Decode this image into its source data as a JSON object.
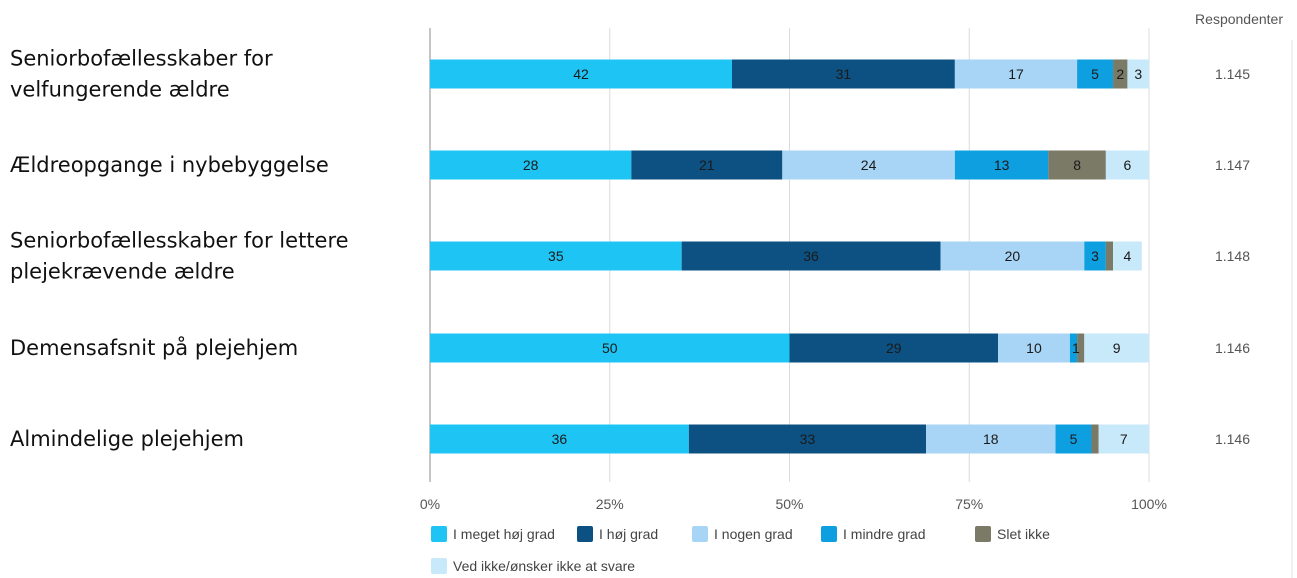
{
  "chart_data": {
    "type": "bar",
    "orientation": "horizontal",
    "stacked": true,
    "categories": [
      [
        "Seniorbofællesskaber for",
        "velfungerende ældre"
      ],
      [
        "Ældreopgange i nybebyggelse"
      ],
      [
        "Seniorbofællesskaber for lettere",
        "plejekrævende ældre"
      ],
      [
        "Demensafsnit på plejehjem"
      ],
      [
        "Almindelige plejehjem"
      ]
    ],
    "series": [
      {
        "name": "I meget høj grad",
        "color": "#1EC5F4",
        "values": [
          42,
          28,
          35,
          50,
          36
        ]
      },
      {
        "name": "I høj grad",
        "color": "#0D5183",
        "values": [
          31,
          21,
          36,
          29,
          33
        ]
      },
      {
        "name": "I nogen grad",
        "color": "#A8D5F5",
        "values": [
          17,
          24,
          20,
          10,
          18
        ]
      },
      {
        "name": "I mindre grad",
        "color": "#0E9FE0",
        "values": [
          5,
          13,
          3,
          1,
          5
        ]
      },
      {
        "name": "Slet ikke",
        "color": "#7A7A66",
        "values": [
          2,
          8,
          1,
          1,
          1
        ]
      },
      {
        "name": "Ved ikke/ønsker ikke at svare",
        "color": "#C8E9FA",
        "values": [
          3,
          6,
          4,
          9,
          7
        ]
      }
    ],
    "visible_labels": [
      [
        "42",
        "31",
        "17",
        "5",
        "2",
        "3"
      ],
      [
        "28",
        "21",
        "24",
        "13",
        "8",
        "6"
      ],
      [
        "35",
        "36",
        "20",
        "3",
        "",
        "4"
      ],
      [
        "50",
        "29",
        "10",
        "1",
        "",
        "9"
      ],
      [
        "36",
        "33",
        "18",
        "5",
        "",
        "7"
      ]
    ],
    "respondents_header": "Respondenter",
    "respondents": [
      "1.145",
      "1.147",
      "1.148",
      "1.146",
      "1.146"
    ],
    "xticks": [
      "0%",
      "25%",
      "50%",
      "75%",
      "100%"
    ],
    "xlim": [
      0,
      100
    ],
    "grid": true,
    "legend_position": "bottom"
  }
}
